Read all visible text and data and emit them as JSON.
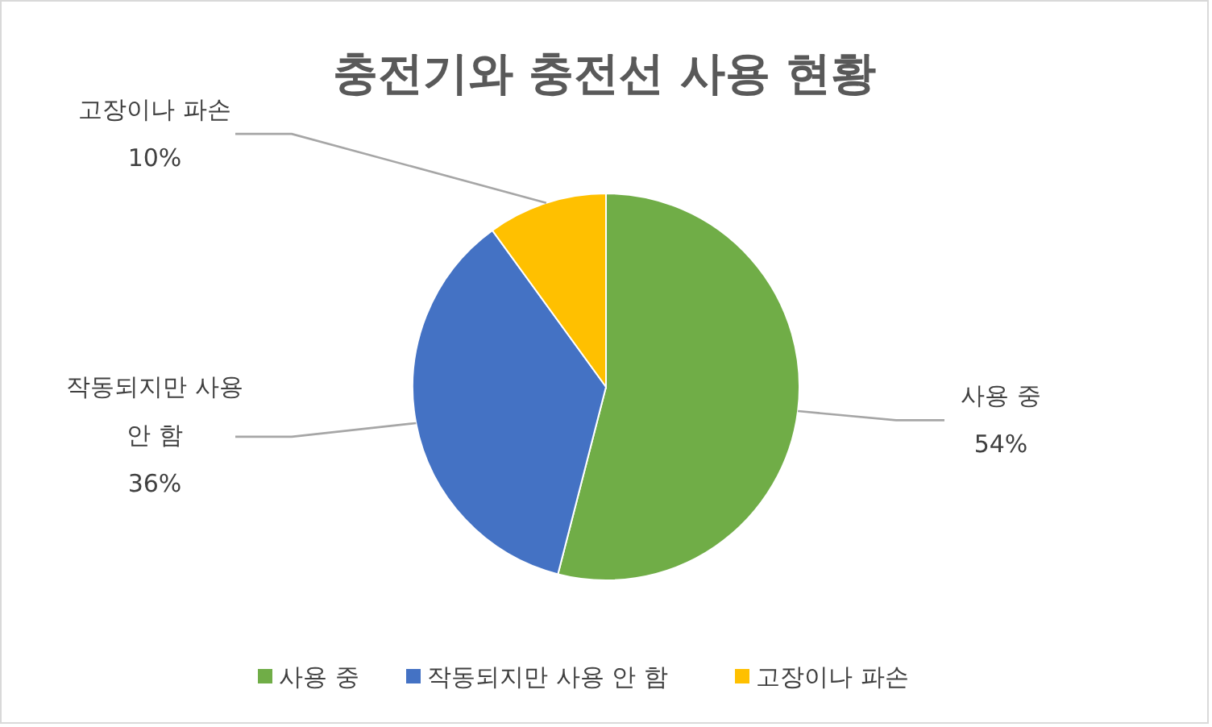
{
  "chart_data": {
    "type": "pie",
    "title": "충전기와 충전선 사용 현황",
    "categories": [
      "사용 중",
      "작동되지만 사용 안 함",
      "고장이나 파손"
    ],
    "values": [
      54,
      36,
      10
    ],
    "value_labels": [
      "54%",
      "36%",
      "10%"
    ],
    "colors": [
      "#70ad47",
      "#4472c4",
      "#ffc000"
    ],
    "legend": "bottom"
  }
}
